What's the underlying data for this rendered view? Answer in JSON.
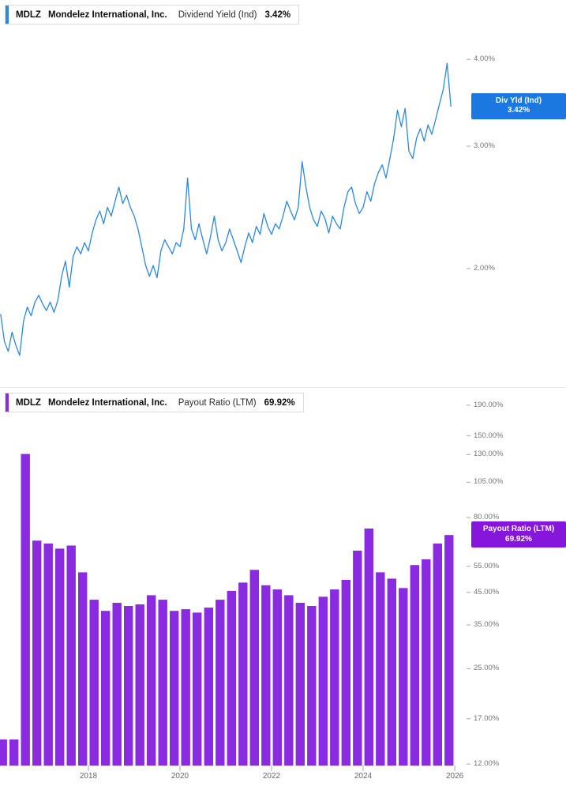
{
  "panels": [
    {
      "ticker": "MDLZ",
      "company": "Mondelez International, Inc.",
      "metric": "Dividend Yield (Ind)",
      "value": "3.42%",
      "accent_color": "#2b87e4",
      "badge": {
        "line1": "Div Yld (Ind)",
        "line2": "3.42%",
        "bg": "#1a78e0"
      }
    },
    {
      "ticker": "MDLZ",
      "company": "Mondelez International, Inc.",
      "metric": "Payout Ratio (LTM)",
      "value": "69.92%",
      "accent_color": "#8a2be2",
      "badge": {
        "line1": "Payout Ratio (LTM)",
        "line2": "69.92%",
        "bg": "#8716dd"
      }
    }
  ],
  "x_axis": {
    "years": [
      2018,
      2020,
      2022,
      2024,
      2026
    ]
  },
  "chart_data": [
    {
      "type": "line",
      "title": "MDLZ Dividend Yield (Ind)",
      "series_name": "Div Yld (Ind)",
      "color": "#2b87e4",
      "grid": false,
      "legend_position": "right-badge",
      "current_value": 3.42,
      "xlim": [
        2016.07,
        2026.24
      ],
      "x_start": 2016.083,
      "x_step": 0.08333,
      "y_axis": {
        "scale": "log",
        "unit": "%",
        "ticks": [
          4.0,
          3.0,
          2.0
        ],
        "ylim": [
          1.35,
          4.87
        ]
      },
      "values": [
        1.72,
        1.57,
        1.52,
        1.62,
        1.55,
        1.5,
        1.68,
        1.76,
        1.71,
        1.79,
        1.83,
        1.78,
        1.74,
        1.79,
        1.73,
        1.8,
        1.95,
        2.05,
        1.88,
        2.08,
        2.15,
        2.1,
        2.18,
        2.12,
        2.25,
        2.35,
        2.42,
        2.32,
        2.45,
        2.38,
        2.5,
        2.62,
        2.48,
        2.55,
        2.45,
        2.38,
        2.28,
        2.15,
        2.02,
        1.95,
        2.02,
        1.94,
        2.12,
        2.2,
        2.15,
        2.1,
        2.18,
        2.15,
        2.28,
        2.7,
        2.28,
        2.2,
        2.32,
        2.2,
        2.1,
        2.22,
        2.38,
        2.2,
        2.12,
        2.18,
        2.28,
        2.2,
        2.12,
        2.04,
        2.15,
        2.25,
        2.18,
        2.3,
        2.24,
        2.4,
        2.3,
        2.24,
        2.32,
        2.28,
        2.38,
        2.5,
        2.42,
        2.35,
        2.45,
        2.85,
        2.62,
        2.45,
        2.35,
        2.3,
        2.42,
        2.36,
        2.25,
        2.38,
        2.32,
        2.28,
        2.45,
        2.58,
        2.62,
        2.48,
        2.4,
        2.45,
        2.58,
        2.5,
        2.65,
        2.75,
        2.82,
        2.7,
        2.88,
        3.08,
        3.38,
        3.2,
        3.4,
        2.95,
        2.88,
        3.08,
        3.18,
        3.05,
        3.22,
        3.12,
        3.28,
        3.45,
        3.62,
        3.95,
        3.42
      ]
    },
    {
      "type": "bar",
      "title": "MDLZ Payout Ratio (LTM)",
      "series_name": "Payout Ratio (LTM)",
      "color": "#8a2be2",
      "grid": false,
      "legend_position": "right-badge",
      "current_value": 69.92,
      "xlim": [
        2016.07,
        2026.24
      ],
      "x_start": 2016.125,
      "x_step": 0.25,
      "y_axis": {
        "scale": "log",
        "unit": "%",
        "ticks": [
          190,
          150,
          130,
          105,
          80,
          55,
          45,
          35,
          25,
          17,
          12
        ],
        "ylim": [
          11.86,
          217
        ]
      },
      "categories": [
        "2016 Q1",
        "2016 Q2",
        "2016 Q3",
        "2016 Q4",
        "2017 Q1",
        "2017 Q2",
        "2017 Q3",
        "2017 Q4",
        "2018 Q1",
        "2018 Q2",
        "2018 Q3",
        "2018 Q4",
        "2019 Q1",
        "2019 Q2",
        "2019 Q3",
        "2019 Q4",
        "2020 Q1",
        "2020 Q2",
        "2020 Q3",
        "2020 Q4",
        "2021 Q1",
        "2021 Q2",
        "2021 Q3",
        "2021 Q4",
        "2022 Q1",
        "2022 Q2",
        "2022 Q3",
        "2022 Q4",
        "2023 Q1",
        "2023 Q2",
        "2023 Q3",
        "2023 Q4",
        "2024 Q1",
        "2024 Q2",
        "2024 Q3",
        "2024 Q4",
        "2025 Q1",
        "2025 Q2",
        "2025 Q3",
        "2025 Q4"
      ],
      "values": [
        14.5,
        14.5,
        130.5,
        67.0,
        65.5,
        63.0,
        64.5,
        52.5,
        42.5,
        39.0,
        41.5,
        40.5,
        41.0,
        44.0,
        42.5,
        39.0,
        39.5,
        38.5,
        40.0,
        42.5,
        45.5,
        48.5,
        53.5,
        47.5,
        46.0,
        44.0,
        41.5,
        40.5,
        43.5,
        46.0,
        49.5,
        62.0,
        73.5,
        52.5,
        50.0,
        46.5,
        55.5,
        58.0,
        65.5,
        69.92
      ]
    }
  ]
}
